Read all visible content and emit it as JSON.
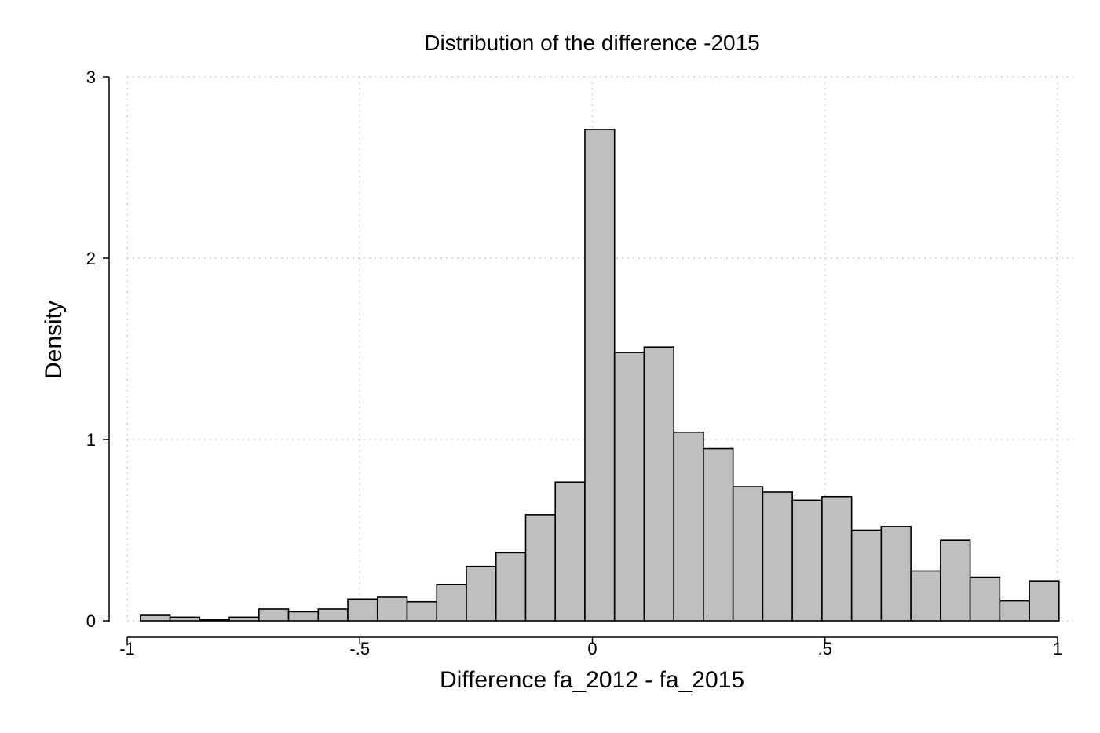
{
  "chart_data": {
    "type": "bar",
    "title": "Distribution of the difference -2015",
    "xlabel": "Difference fa_2012 - fa_2015",
    "ylabel": "Density",
    "xlim": [
      -1,
      1
    ],
    "ylim": [
      0,
      3
    ],
    "x_ticks": [
      -1,
      -0.5,
      0,
      0.5,
      1
    ],
    "x_tick_labels": [
      "-1",
      "-.5",
      "0",
      ".5",
      "1"
    ],
    "y_ticks": [
      0,
      1,
      2,
      3
    ],
    "y_tick_labels": [
      "0",
      "1",
      "2",
      "3"
    ],
    "grid": true,
    "bin_edges_start": -0.9716,
    "bin_width": 0.0637,
    "values": [
      0.03,
      0.02,
      0.005,
      0.02,
      0.065,
      0.05,
      0.065,
      0.12,
      0.13,
      0.105,
      0.2,
      0.3,
      0.375,
      0.585,
      0.765,
      2.71,
      1.48,
      1.51,
      1.04,
      0.95,
      0.74,
      0.71,
      0.665,
      0.685,
      0.5,
      0.52,
      0.275,
      0.445,
      0.24,
      0.11,
      0.22
    ]
  }
}
